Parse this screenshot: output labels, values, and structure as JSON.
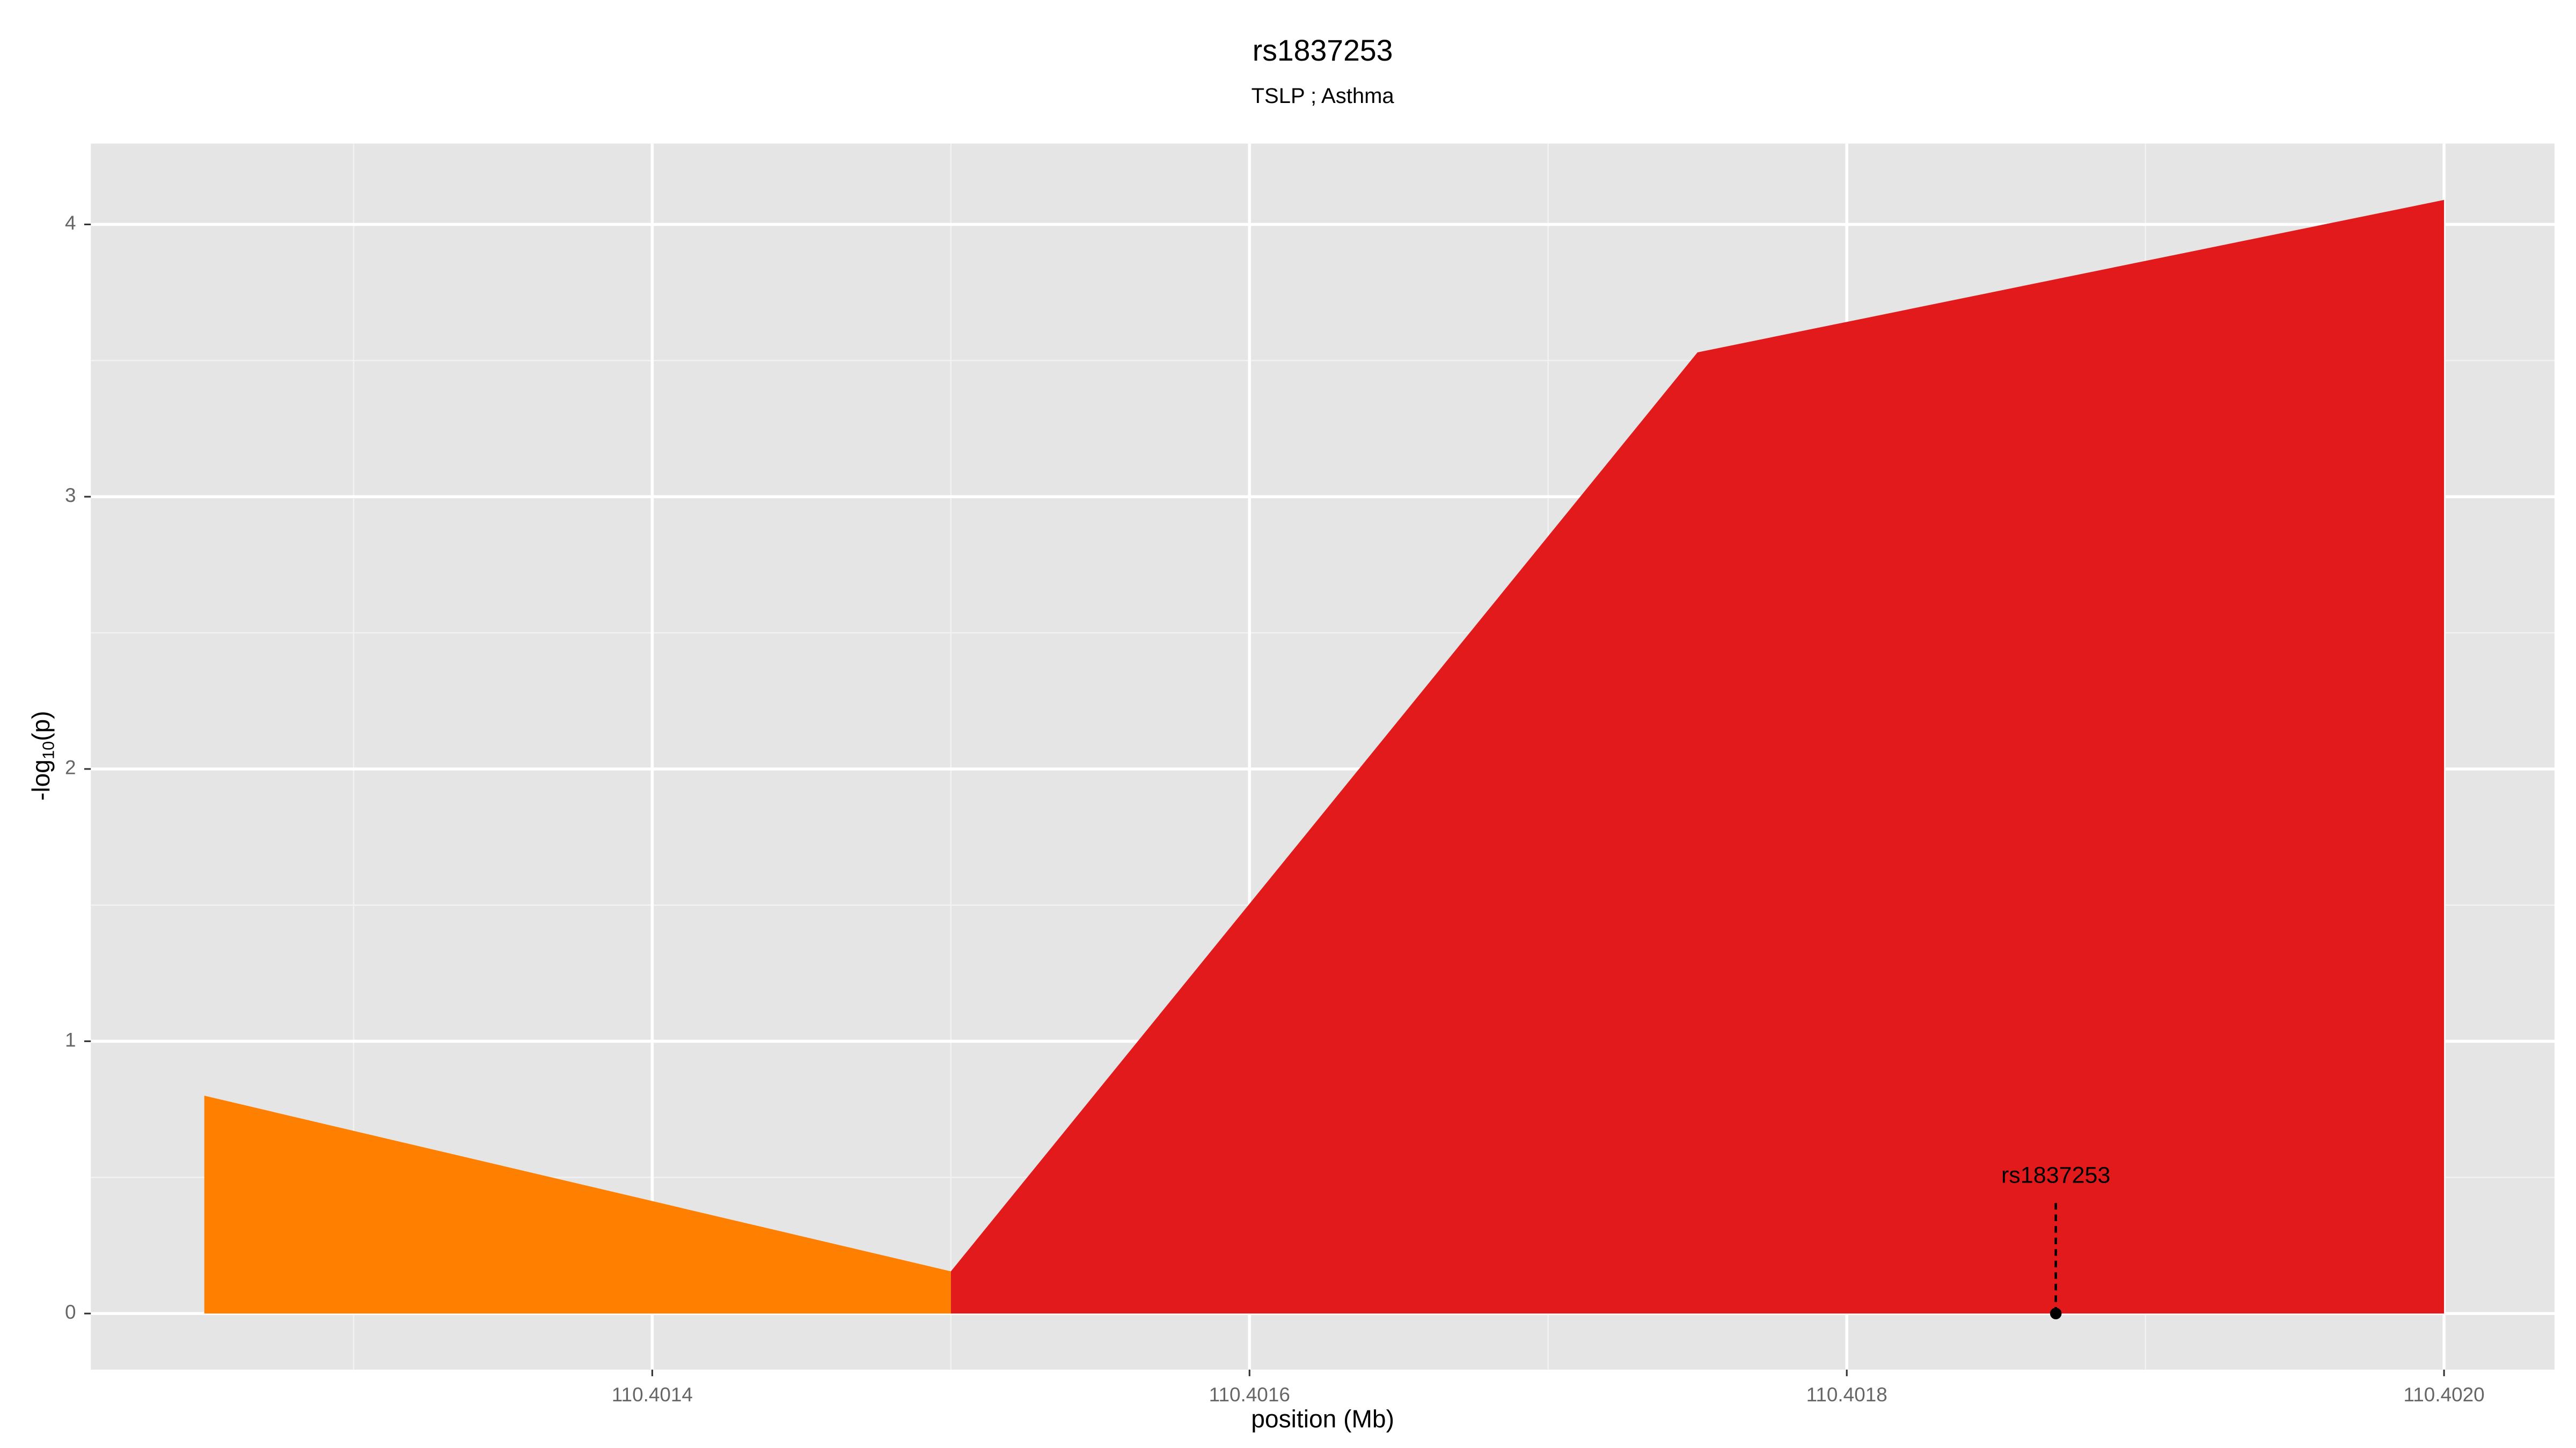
{
  "chart_data": {
    "type": "area",
    "title": "rs1837253",
    "subtitle": "TSLP ; Asthma",
    "x_label": "position (Mb)",
    "y_label": [
      "-log",
      "10",
      "(p)"
    ],
    "series": [
      {
        "color": "#ff7f00",
        "x": [
          110.40125,
          110.4015
        ],
        "values": [
          0.8,
          0.155
        ]
      },
      {
        "color": "#e31a1c",
        "x": [
          110.4015,
          110.40175,
          110.402
        ],
        "values": [
          0.155,
          3.53,
          4.09
        ]
      }
    ],
    "xlim": [
      110.401212,
      110.402037
    ],
    "ylim": [
      -0.206,
      4.297
    ],
    "xticks": [
      110.4014,
      110.4016,
      110.4018,
      {
        "value": 110.402,
        "label": "110.4020"
      }
    ],
    "yticks": [
      0,
      1,
      2,
      3,
      4
    ],
    "x_minor_ticks": [
      110.4013,
      110.4015,
      110.4017,
      110.4019
    ],
    "y_minor_ticks": [
      0.5,
      1.5,
      2.5,
      3.5
    ],
    "grid": true,
    "annotation": {
      "text": "rs1837253",
      "x": 110.40187,
      "y": 0
    }
  }
}
